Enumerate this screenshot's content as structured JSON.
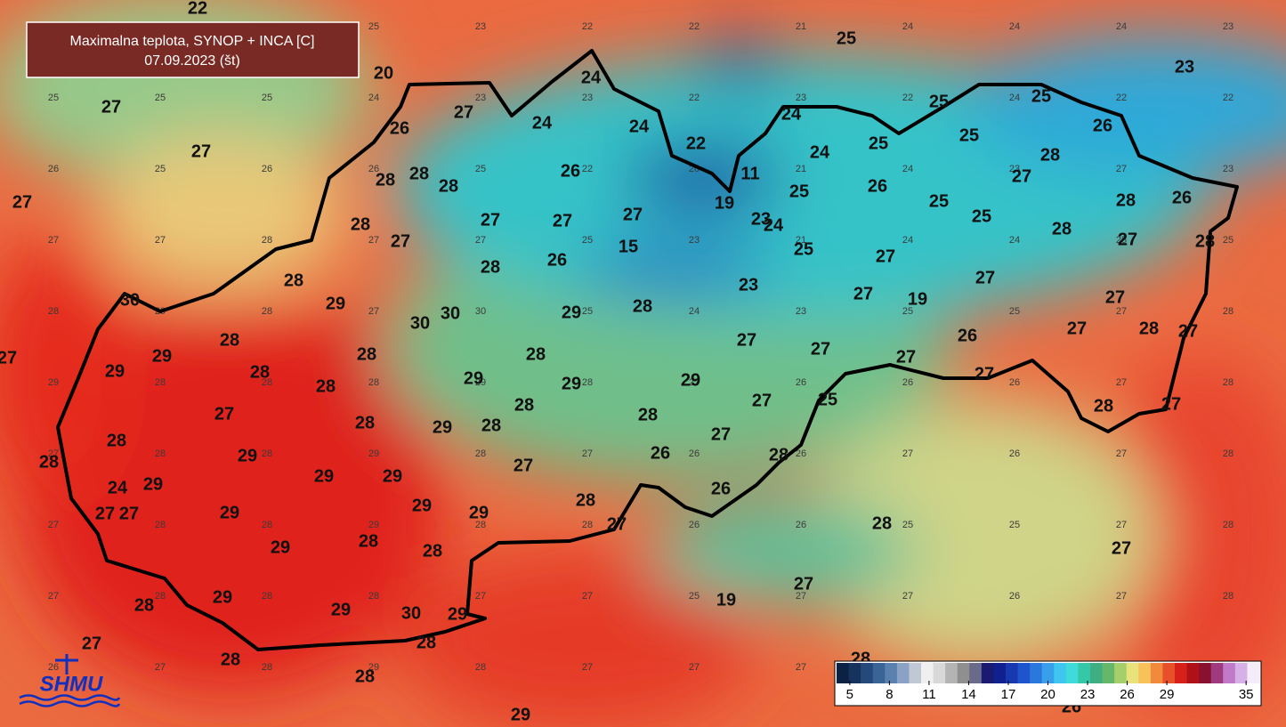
{
  "header": {
    "title": "Maximalna teplota, SYNOP + INCA [C]",
    "date": "07.09.2023 (št)"
  },
  "stations": [
    22,
    27,
    27,
    27,
    20,
    25,
    23,
    26,
    27,
    24,
    24,
    24,
    22,
    24,
    25,
    25,
    25,
    25,
    26,
    28,
    28,
    28,
    26,
    24,
    28,
    27,
    25,
    26,
    25,
    25,
    28,
    26,
    27,
    27,
    27,
    19,
    23,
    24,
    28,
    27,
    28,
    27,
    28,
    15,
    25,
    27,
    26,
    28,
    28,
    30,
    23,
    27,
    19,
    27,
    27,
    29,
    30,
    30,
    29,
    28,
    27,
    27,
    26,
    27,
    28,
    27,
    28,
    29,
    29,
    27,
    28,
    28,
    28,
    27,
    27,
    28,
    29,
    29,
    29,
    27,
    25,
    28,
    27,
    27,
    28,
    28,
    28,
    28,
    29,
    27,
    28,
    29,
    26,
    28,
    28,
    27,
    29,
    29,
    29,
    24,
    26,
    27,
    27,
    29,
    29,
    29,
    28,
    27,
    28,
    29,
    28,
    28,
    27,
    27,
    19,
    28,
    29,
    29,
    30,
    29,
    27,
    28,
    28,
    28,
    28,
    29,
    26,
    11
  ],
  "grid": [
    [
      25,
      24,
      26,
      25,
      23,
      22,
      22,
      21,
      24,
      24,
      24,
      23
    ],
    [
      25,
      25,
      25,
      24,
      23,
      23,
      22,
      23,
      22,
      24,
      22,
      22
    ],
    [
      26,
      25,
      26,
      26,
      25,
      22,
      20,
      21,
      24,
      23,
      27,
      23
    ],
    [
      27,
      27,
      28,
      27,
      27,
      25,
      23,
      21,
      24,
      24,
      25,
      25
    ],
    [
      28,
      29,
      28,
      27,
      30,
      25,
      24,
      23,
      25,
      25,
      27,
      28
    ],
    [
      29,
      28,
      28,
      28,
      29,
      28,
      27,
      26,
      26,
      26,
      27,
      28
    ],
    [
      27,
      28,
      28,
      29,
      28,
      27,
      26,
      26,
      27,
      26,
      27,
      28
    ],
    [
      27,
      28,
      28,
      29,
      28,
      28,
      26,
      26,
      25,
      25,
      27,
      28
    ],
    [
      27,
      28,
      28,
      28,
      27,
      27,
      25,
      27,
      27,
      26,
      27,
      28
    ],
    [
      26,
      27,
      28,
      29,
      28,
      27,
      27,
      27,
      26,
      26,
      26,
      27
    ]
  ],
  "colorbar": {
    "lim": [
      4,
      36
    ],
    "ticks": [
      5,
      8,
      11,
      14,
      17,
      20,
      23,
      26,
      29,
      35
    ],
    "colors": [
      "#0b2245",
      "#16335e",
      "#24497a",
      "#3a6496",
      "#5a80ad",
      "#8aa2c4",
      "#c0c8d6",
      "#f0f0f0",
      "#d8d8d8",
      "#b4b4b4",
      "#8f8f8f",
      "#6a6a8a",
      "#1a1a70",
      "#10208e",
      "#1838b0",
      "#1f55cc",
      "#2a78dd",
      "#38a0ea",
      "#3fc6ef",
      "#3fdbd8",
      "#34c7a8",
      "#3fae82",
      "#65b86a",
      "#a5cf6a",
      "#e7e27a",
      "#f7c25a",
      "#f28a3c",
      "#e8502a",
      "#d8201a",
      "#b01018",
      "#8a1030",
      "#a03a80",
      "#c07ac8",
      "#d8b0e8",
      "#f4ecf8"
    ]
  },
  "logo": "SHMU"
}
